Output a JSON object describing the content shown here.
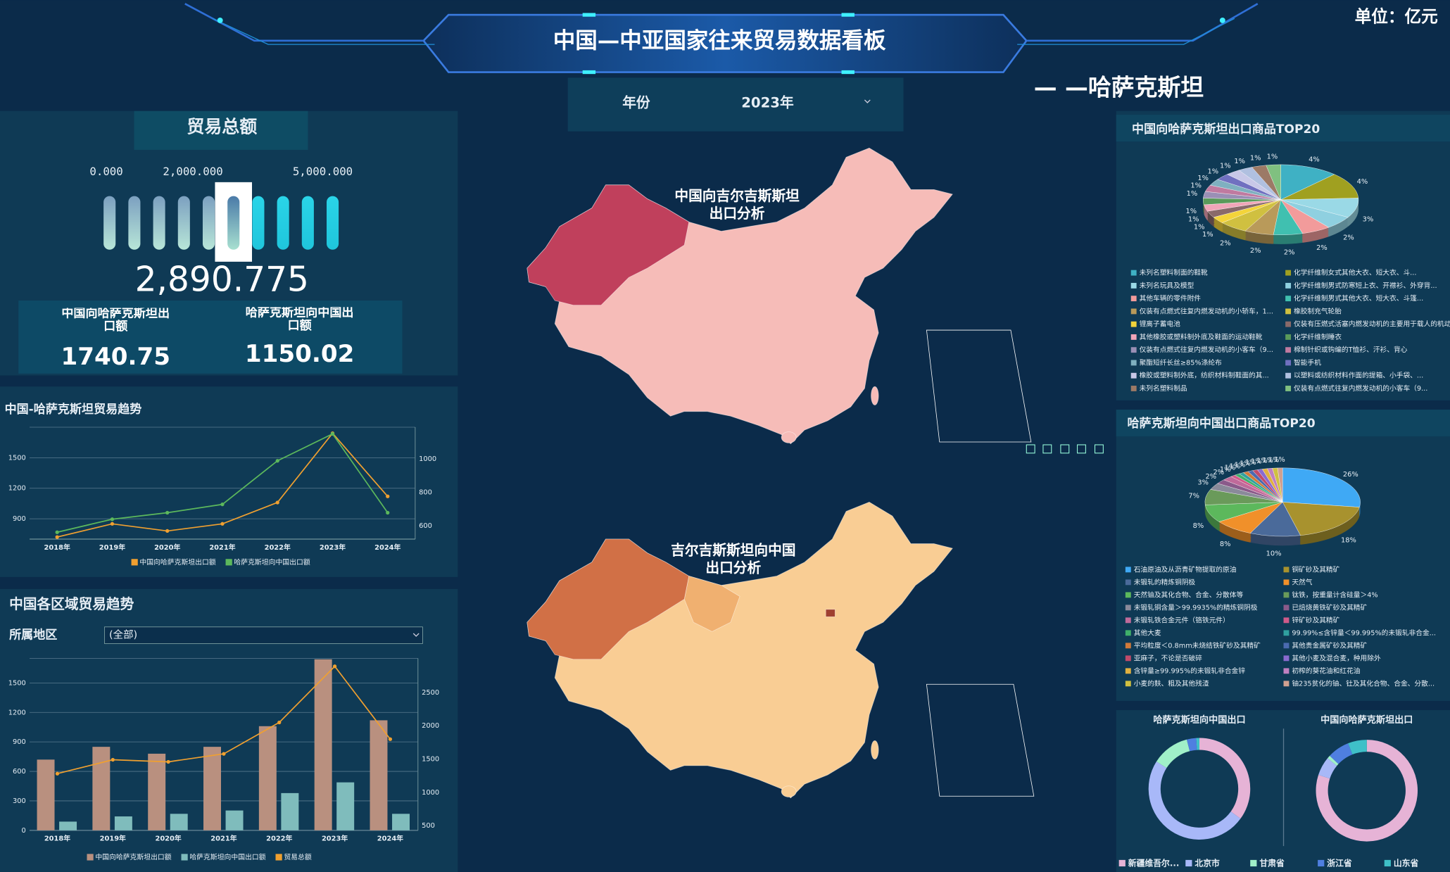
{
  "header": {
    "title": "中国—中亚国家往来贸易数据看板",
    "unit": "单位：亿元",
    "country": "— —哈萨克斯坦",
    "year_label": "年份",
    "year": "2023年"
  },
  "kpis": [
    {
      "label": "中国向哈萨克斯坦出口额",
      "value": 1740.75
    },
    {
      "label": "哈萨克斯坦向中国出口额",
      "value": 1150.02
    }
  ],
  "filter": {
    "label": "所属地区",
    "value": "(全部)"
  },
  "maps": [
    {
      "title": "中国向吉尔吉斯斯坦出口分析"
    },
    {
      "title": "吉尔吉斯斯坦向中国出口分析"
    }
  ],
  "chart_data": [
    {
      "type": "gauge",
      "title": "贸易总额",
      "value": 2890.775,
      "value_label": "2,890.775",
      "xlim": [
        0,
        5000
      ],
      "xticks": [
        {
          "value": 0,
          "label": "0.000"
        },
        {
          "value": 2000,
          "label": "2,000.000"
        },
        {
          "value": 5000,
          "label": "5,000.000"
        }
      ]
    },
    {
      "type": "line",
      "title": "中国-哈萨克斯坦贸易趋势",
      "categories": [
        "2018年",
        "2019年",
        "2020年",
        "2021年",
        "2022年",
        "2023年",
        "2024年"
      ],
      "series": [
        {
          "name": "中国向哈萨克斯坦出口额",
          "color": "#f0a030",
          "values": [
            720,
            850,
            780,
            850,
            1060,
            1740.75,
            1120
          ]
        },
        {
          "name": "哈萨克斯坦向中国出口额",
          "color": "#5cb85c",
          "axis": "y2",
          "values": [
            561,
            639,
            678,
            728,
            989,
            1150.02,
            678
          ]
        }
      ],
      "ylim": [
        700,
        1800
      ],
      "yticks": [
        900,
        1200,
        1500
      ],
      "y2lim": [
        520,
        1190
      ],
      "y2ticks": [
        600,
        800,
        1000
      ],
      "grid": true
    },
    {
      "type": "bar-line",
      "title": "中国各区域贸易趋势",
      "categories": [
        "2018年",
        "2019年",
        "2020年",
        "2021年",
        "2022年",
        "2023年",
        "2024年"
      ],
      "series": [
        {
          "name": "中国向哈萨克斯坦出口额",
          "type": "bar",
          "color": "#b9907f",
          "values": [
            720,
            850,
            780,
            850,
            1060,
            1740.75,
            1120
          ]
        },
        {
          "name": "哈萨克斯坦向中国出口额",
          "type": "bar",
          "axis": "y2",
          "color": "#7fbcbc",
          "values": [
            561,
            639,
            678,
            728,
            989,
            1150.02,
            678
          ]
        },
        {
          "name": "贸易总额",
          "type": "line",
          "axis": "y2",
          "color": "#f0a030",
          "values": [
            1281,
            1489,
            1458,
            1578,
            2049,
            2890.775,
            1798
          ]
        }
      ],
      "ylim": [
        0,
        1750
      ],
      "yticks": [
        0,
        300,
        600,
        900,
        1200,
        1500
      ],
      "y2lim": [
        430,
        3010
      ],
      "y2ticks": [
        500,
        1000,
        1500,
        2000,
        2500
      ],
      "grid": true
    },
    {
      "type": "pie",
      "title": "中国向哈萨克斯坦出口商品TOP20",
      "categories": [
        "未列名塑料制面的鞋靴",
        "化学纤维制女式其他大衣、短大衣、斗...",
        "未列名玩具及模型",
        "化学纤维制男式防寒短上衣、开襟衫、外穿背...",
        "其他车辆的零件附件",
        "化学纤维制男式其他大衣、短大衣、斗篷...",
        "仅装有点燃式往复内燃发动机的小轿车，1...",
        "橡胶制充气轮胎",
        "锂离子蓄电池",
        "仅装有压燃式活塞内燃发动机的主要用于载人的机动车",
        "其他橡胶或塑料制外底及鞋面的运动鞋靴",
        "化学纤维制睡衣",
        "仅装有点燃式往复内燃发动机的小客车（9...",
        "棉制针织或钩编的T恤衫、汗衫、背心",
        "聚酯短纤长丝≥85%涤纶布",
        "智能手机",
        "橡胶或塑料制外底，纺织材料制鞋面的其...",
        "以塑料或纺织材料作面的提箱、小手袋、...",
        "未列名塑料制品",
        "仅装有点燃式往复内燃发动机的小客车（9..."
      ],
      "values": [
        4,
        4,
        3,
        2,
        2,
        2,
        2,
        2,
        1,
        1,
        1,
        1,
        1,
        1,
        1,
        1,
        1,
        1,
        1,
        1
      ],
      "value_labels": [
        "4%",
        "4%",
        "3%",
        "2%",
        "2%",
        "2%",
        "2%",
        "2%",
        "1%",
        "1%",
        "1%",
        "1%",
        "1%",
        "1%",
        "1%",
        "1%",
        "1%",
        "1%",
        "1%",
        "1%"
      ],
      "colors": [
        "#3fb1c4",
        "#a0a020",
        "#9ad9e6",
        "#8fd0e0",
        "#f29b9b",
        "#40c0b0",
        "#b99a5a",
        "#d0c040",
        "#f3d43a",
        "#8a6a6a",
        "#f1a5b8",
        "#5a9a5a",
        "#9a8fb5",
        "#c07aa0",
        "#7fb0c0",
        "#7070c0",
        "#c8c8e8",
        "#b0c0e0",
        "#9c7a66",
        "#80c080"
      ]
    },
    {
      "type": "pie",
      "title": "哈萨克斯坦向中国出口商品TOP20",
      "categories": [
        "石油原油及从沥青矿物提取的原油",
        "铜矿砂及其精矿",
        "未锻轧的精炼铜阴极",
        "天然气",
        "天然铀及其化合物、合金、分散体等",
        "钛铁，按重量计含硅量＞4%",
        "未锻轧铜含量＞99.9935%的精炼铜阴极",
        "已焙烧黄铁矿砂及其精矿",
        "未锻轧铁合金元件（铬铁元件）",
        "锌矿砂及其精矿",
        "其他大麦",
        "99.99%≤含锌量＜99.995%的未锻轧非合金...",
        "平均粒度＜0.8mm未烧结铁矿砂及其精矿",
        "其他贵金属矿砂及其精矿",
        "亚麻子，不论是否破碎",
        "其他小麦及混合麦，种用除外",
        "含锌量≥99.995%的未锻轧非合金锌",
        "初榨的葵花油和红花油",
        "小麦的麸、粗及其他残渣",
        "铀235贫化的铀、钍及其化合物、合金、分散..."
      ],
      "values": [
        26,
        18,
        10,
        8,
        8,
        7,
        3,
        2,
        2,
        1,
        1,
        1,
        1,
        1,
        1,
        1,
        1,
        1,
        1,
        1
      ],
      "value_labels": [
        "26%",
        "18%",
        "10%",
        "8%",
        "8%",
        "7%",
        "3%",
        "2%",
        "2%",
        "1%",
        "1%",
        "1%",
        "1%",
        "1%",
        "1%",
        "1%",
        "1%",
        "1%",
        "1%",
        "1%"
      ],
      "colors": [
        "#3fa9f5",
        "#a8922e",
        "#4a6a9a",
        "#f0902a",
        "#5cb85c",
        "#6a9a5a",
        "#8a8a9a",
        "#8a5a8a",
        "#c06a9a",
        "#d05a8a",
        "#3fb06a",
        "#30a0a0",
        "#d07a3a",
        "#4a6ab0",
        "#c04a6a",
        "#8a6ad0",
        "#e0b040",
        "#c080c0",
        "#d0c040",
        "#d0a090"
      ]
    },
    {
      "type": "donut",
      "categories": [
        "新疆维吾尔...",
        "北京市",
        "甘肃省",
        "浙江省",
        "山东省"
      ],
      "colors": [
        "#e6b3d6",
        "#a8b8f8",
        "#a0f0c8",
        "#4f7fe0",
        "#3fc0c8"
      ],
      "series": [
        {
          "name": "哈萨克斯坦向中国出口",
          "values": [
            35,
            49,
            12,
            3,
            1
          ]
        },
        {
          "name": "中国向哈萨克斯坦出口",
          "values": [
            80,
            6,
            1,
            7,
            6
          ]
        }
      ]
    }
  ]
}
